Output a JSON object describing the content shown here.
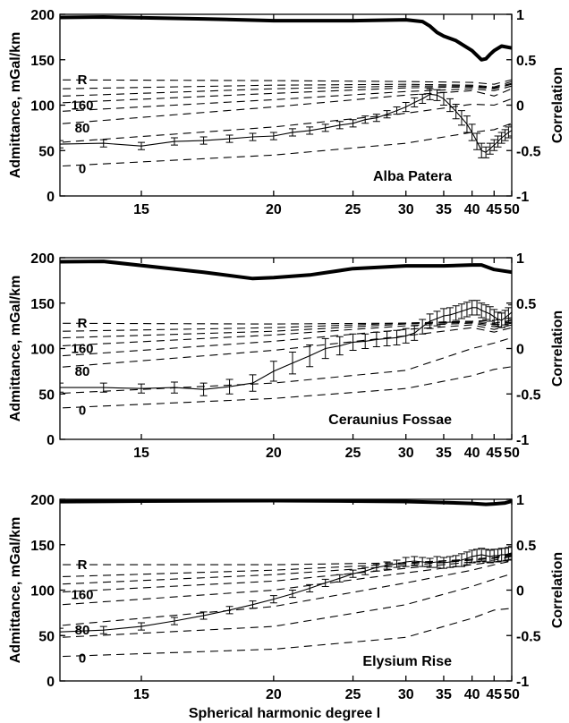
{
  "xlabel": "Spherical harmonic degree l",
  "chart_data": [
    {
      "type": "line",
      "title": "Alba Patera",
      "xlabel": "Spherical harmonic degree l",
      "ylabel": "Admittance, mGal/km",
      "y2label": "Correlation",
      "x_ticks": [
        "15",
        "20",
        "25",
        "30",
        "35",
        "40",
        "45",
        "50"
      ],
      "y_ticks": [
        "0",
        "50",
        "100",
        "150",
        "200"
      ],
      "y2_ticks": [
        "-1",
        "-0.5",
        "0",
        "0.5",
        "1"
      ],
      "xlim": [
        13,
        50
      ],
      "x_scale": "reciprocal",
      "ylim": [
        0,
        200
      ],
      "y2lim": [
        -1,
        1
      ],
      "model_labels": [
        {
          "text": "R",
          "curve": 0
        },
        {
          "text": "160",
          "curve": 3
        },
        {
          "text": "80",
          "curve": 5
        },
        {
          "text": "0",
          "curve": 7
        }
      ],
      "model_curves": [
        {
          "x": [
            12,
            20,
            30,
            40,
            45,
            50
          ],
          "y": [
            128,
            127,
            126,
            125,
            123,
            128
          ]
        },
        {
          "x": [
            12,
            20,
            30,
            40,
            45,
            50
          ],
          "y": [
            117,
            122,
            123,
            122,
            120,
            126
          ]
        },
        {
          "x": [
            12,
            20,
            30,
            40,
            45,
            50
          ],
          "y": [
            108,
            118,
            121,
            121,
            119,
            124
          ]
        },
        {
          "x": [
            12,
            20,
            30,
            40,
            45,
            50
          ],
          "y": [
            100,
            113,
            119,
            120,
            118,
            123
          ]
        },
        {
          "x": [
            12,
            20,
            30,
            40,
            45,
            50
          ],
          "y": [
            90,
            106,
            115,
            118,
            116,
            121
          ]
        },
        {
          "x": [
            12,
            20,
            30,
            40,
            45,
            50
          ],
          "y": [
            75,
            98,
            111,
            116,
            110,
            118
          ]
        },
        {
          "x": [
            12,
            20,
            30,
            40,
            45,
            50
          ],
          "y": [
            55,
            76,
            91,
            101,
            100,
            107
          ]
        },
        {
          "x": [
            12,
            20,
            30,
            40,
            45,
            50
          ],
          "y": [
            30,
            45,
            58,
            70,
            73,
            80
          ]
        }
      ],
      "series": [
        {
          "kind": "admittance",
          "x": [
            12,
            13,
            14,
            15,
            16,
            17,
            18,
            19,
            20,
            21,
            22,
            23,
            24,
            25,
            26,
            27,
            28,
            29,
            30,
            31,
            32,
            33,
            34,
            35,
            36,
            37,
            38,
            39,
            40,
            41,
            42,
            43,
            44,
            45,
            46,
            47,
            48,
            49,
            50
          ],
          "y": [
            57,
            57,
            58,
            55,
            60,
            61,
            63,
            65,
            66,
            70,
            72,
            75,
            78,
            80,
            84,
            86,
            90,
            94,
            98,
            103,
            107,
            112,
            111,
            107,
            100,
            93,
            86,
            79,
            70,
            60,
            50,
            48,
            52,
            56,
            60,
            64,
            67,
            70,
            72
          ],
          "err": [
            4,
            4,
            4,
            4,
            4,
            4,
            4,
            4,
            4,
            4,
            4,
            4,
            4,
            4,
            4,
            4,
            4,
            4,
            5,
            5,
            5,
            6,
            6,
            7,
            7,
            8,
            8,
            9,
            9,
            9,
            8,
            6,
            6,
            6,
            6,
            6,
            6,
            6,
            6
          ]
        },
        {
          "kind": "correlation",
          "x": [
            12,
            14,
            17,
            20,
            25,
            30,
            32,
            33,
            34,
            35,
            37,
            40,
            42,
            43,
            44,
            45,
            47,
            50
          ],
          "y": [
            0.96,
            0.97,
            0.95,
            0.93,
            0.93,
            0.94,
            0.92,
            0.87,
            0.8,
            0.76,
            0.71,
            0.6,
            0.5,
            0.51,
            0.56,
            0.6,
            0.65,
            0.63
          ]
        }
      ]
    },
    {
      "type": "line",
      "title": "Ceraunius Fossae",
      "xlabel": "Spherical harmonic degree l",
      "ylabel": "Admittance, mGal/km",
      "y2label": "Correlation",
      "x_ticks": [
        "15",
        "20",
        "25",
        "30",
        "35",
        "40",
        "45",
        "50"
      ],
      "y_ticks": [
        "0",
        "50",
        "100",
        "150",
        "200"
      ],
      "y2_ticks": [
        "-1",
        "-0.5",
        "0",
        "0.5",
        "1"
      ],
      "xlim": [
        13,
        50
      ],
      "x_scale": "reciprocal",
      "ylim": [
        0,
        200
      ],
      "y2lim": [
        -1,
        1
      ],
      "model_labels": [
        {
          "text": "R",
          "curve": 0
        },
        {
          "text": "160",
          "curve": 3
        },
        {
          "text": "80",
          "curve": 5
        },
        {
          "text": "0",
          "curve": 7
        }
      ],
      "model_curves": [
        {
          "x": [
            12,
            20,
            30,
            40,
            45,
            50
          ],
          "y": [
            128,
            127,
            128,
            130,
            131,
            134
          ]
        },
        {
          "x": [
            12,
            20,
            30,
            40,
            45,
            50
          ],
          "y": [
            118,
            123,
            128,
            130,
            128,
            131
          ]
        },
        {
          "x": [
            12,
            20,
            30,
            40,
            45,
            50
          ],
          "y": [
            110,
            119,
            127,
            129,
            126,
            129
          ]
        },
        {
          "x": [
            12,
            20,
            30,
            40,
            45,
            50
          ],
          "y": [
            100,
            115,
            125,
            128,
            124,
            128
          ]
        },
        {
          "x": [
            12,
            20,
            30,
            40,
            45,
            50
          ],
          "y": [
            88,
            108,
            121,
            126,
            121,
            126
          ]
        },
        {
          "x": [
            12,
            20,
            30,
            40,
            45,
            50
          ],
          "y": [
            75,
            98,
            114,
            123,
            118,
            123
          ]
        },
        {
          "x": [
            12,
            20,
            30,
            40,
            45,
            50
          ],
          "y": [
            48,
            62,
            76,
            100,
            106,
            112
          ]
        },
        {
          "x": [
            12,
            20,
            30,
            40,
            45,
            50
          ],
          "y": [
            32,
            45,
            56,
            70,
            77,
            80
          ]
        }
      ],
      "series": [
        {
          "kind": "admittance",
          "x": [
            12,
            13,
            14,
            15,
            16,
            17,
            18,
            19,
            20,
            21,
            22,
            23,
            24,
            25,
            26,
            27,
            28,
            29,
            30,
            31,
            32,
            33,
            34,
            35,
            36,
            37,
            38,
            39,
            40,
            41,
            42,
            43,
            44,
            45,
            46,
            47,
            48,
            49,
            50
          ],
          "y": [
            50,
            57,
            57,
            56,
            57,
            55,
            58,
            62,
            75,
            84,
            92,
            100,
            103,
            107,
            108,
            110,
            111,
            112,
            114,
            117,
            124,
            130,
            133,
            136,
            137,
            139,
            141,
            143,
            145,
            145,
            142,
            140,
            138,
            135,
            132,
            131,
            134,
            137,
            140
          ],
          "err": [
            5,
            5,
            5,
            5,
            6,
            7,
            8,
            9,
            11,
            12,
            12,
            11,
            10,
            9,
            8,
            8,
            8,
            8,
            8,
            8,
            8,
            8,
            8,
            8,
            8,
            8,
            8,
            8,
            8,
            8,
            8,
            8,
            8,
            8,
            8,
            8,
            8,
            8,
            8
          ]
        },
        {
          "kind": "correlation",
          "x": [
            12,
            14,
            17,
            19,
            20,
            22,
            25,
            30,
            35,
            40,
            42,
            45,
            50
          ],
          "y": [
            0.95,
            0.96,
            0.84,
            0.77,
            0.78,
            0.81,
            0.88,
            0.91,
            0.91,
            0.92,
            0.92,
            0.87,
            0.84
          ]
        }
      ]
    },
    {
      "type": "line",
      "title": "Elysium Rise",
      "xlabel": "Spherical harmonic degree l",
      "ylabel": "Admittance, mGal/km",
      "y2label": "Correlation",
      "x_ticks": [
        "15",
        "20",
        "25",
        "30",
        "35",
        "40",
        "45",
        "50"
      ],
      "y_ticks": [
        "0",
        "50",
        "100",
        "150",
        "200"
      ],
      "y2_ticks": [
        "-1",
        "-0.5",
        "0",
        "0.5",
        "1"
      ],
      "xlim": [
        13,
        50
      ],
      "x_scale": "reciprocal",
      "ylim": [
        0,
        200
      ],
      "y2lim": [
        -1,
        1
      ],
      "model_labels": [
        {
          "text": "R",
          "curve": 0
        },
        {
          "text": "160",
          "curve": 3
        },
        {
          "text": "80",
          "curve": 5
        },
        {
          "text": "0",
          "curve": 7
        }
      ],
      "model_curves": [
        {
          "x": [
            12,
            20,
            30,
            40,
            45,
            50
          ],
          "y": [
            128,
            128,
            130,
            134,
            136,
            140
          ]
        },
        {
          "x": [
            12,
            20,
            30,
            40,
            45,
            50
          ],
          "y": [
            113,
            122,
            129,
            134,
            136,
            139
          ]
        },
        {
          "x": [
            12,
            20,
            30,
            40,
            45,
            50
          ],
          "y": [
            104,
            117,
            127,
            133,
            135,
            138
          ]
        },
        {
          "x": [
            12,
            20,
            30,
            40,
            45,
            50
          ],
          "y": [
            95,
            110,
            124,
            131,
            133,
            137
          ]
        },
        {
          "x": [
            12,
            20,
            30,
            40,
            45,
            50
          ],
          "y": [
            80,
            100,
            119,
            128,
            131,
            134
          ]
        },
        {
          "x": [
            12,
            20,
            30,
            40,
            45,
            50
          ],
          "y": [
            56,
            82,
            108,
            122,
            128,
            132
          ]
        },
        {
          "x": [
            12,
            20,
            30,
            40,
            45,
            50
          ],
          "y": [
            45,
            60,
            84,
            104,
            112,
            118
          ]
        },
        {
          "x": [
            12,
            20,
            30,
            40,
            45,
            50
          ],
          "y": [
            25,
            35,
            48,
            69,
            78,
            80
          ]
        }
      ],
      "series": [
        {
          "kind": "admittance",
          "x": [
            12,
            13,
            14,
            15,
            16,
            17,
            18,
            19,
            20,
            21,
            22,
            23,
            24,
            25,
            26,
            27,
            28,
            29,
            30,
            31,
            32,
            33,
            34,
            35,
            36,
            37,
            38,
            39,
            40,
            41,
            42,
            43,
            44,
            45,
            46,
            47,
            48,
            49,
            50
          ],
          "y": [
            52,
            54,
            56,
            60,
            66,
            72,
            78,
            84,
            90,
            96,
            102,
            108,
            113,
            118,
            121,
            125,
            127,
            129,
            131,
            132,
            131,
            130,
            131,
            130,
            131,
            132,
            133,
            135,
            137,
            138,
            139,
            138,
            137,
            138,
            138,
            139,
            139,
            140,
            141
          ],
          "err": [
            4,
            4,
            4,
            4,
            4,
            4,
            4,
            4,
            4,
            4,
            4,
            4,
            4,
            4,
            4,
            4,
            4,
            4,
            5,
            5,
            5,
            5,
            6,
            6,
            6,
            6,
            7,
            7,
            7,
            7,
            7,
            7,
            7,
            7,
            7,
            7,
            7,
            7,
            7
          ]
        },
        {
          "kind": "correlation",
          "x": [
            12,
            15,
            20,
            25,
            30,
            35,
            40,
            43,
            45,
            48,
            50
          ],
          "y": [
            0.97,
            0.98,
            0.985,
            0.98,
            0.975,
            0.965,
            0.955,
            0.945,
            0.95,
            0.96,
            0.98
          ]
        }
      ]
    }
  ]
}
